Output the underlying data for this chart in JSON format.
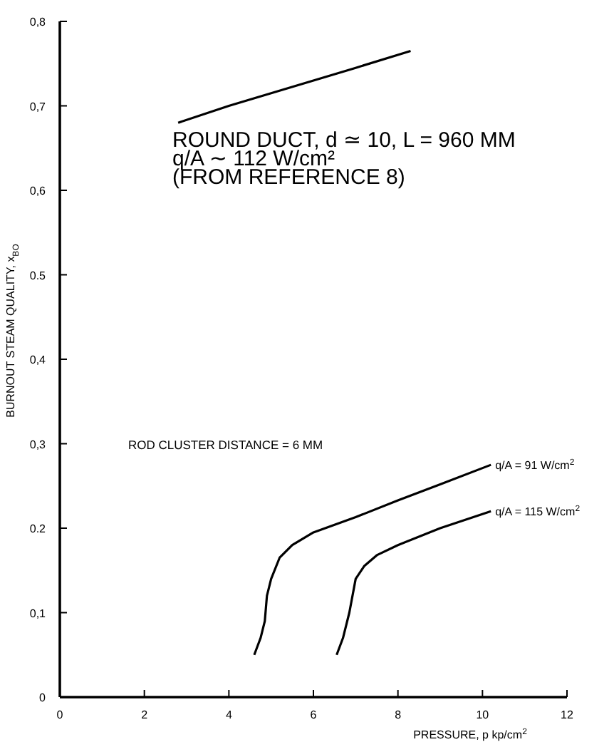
{
  "chart_data": {
    "type": "line",
    "xlabel": "PRESSURE, p kp/cm$^{2}$",
    "ylabel": "BURNOUT STEAM QUALITY, x$_{BO}$",
    "xlim": [
      0,
      12
    ],
    "xticks": [
      0,
      2,
      4,
      6,
      8,
      10,
      12
    ],
    "ylim": [
      0,
      0.8
    ],
    "yticks": [
      {
        "value": 0,
        "label": "0"
      },
      {
        "value": 0.1,
        "label": "0,1"
      },
      {
        "value": 0.2,
        "label": "0.2"
      },
      {
        "value": 0.3,
        "label": "0,3"
      },
      {
        "value": 0.4,
        "label": "0,4"
      },
      {
        "value": 0.5,
        "label": "0.5"
      },
      {
        "value": 0.6,
        "label": "0,6"
      },
      {
        "value": 0.7,
        "label": "0,7"
      },
      {
        "value": 0.8,
        "label": "0,8"
      }
    ],
    "grid": false,
    "marker": "none",
    "line_style": "solid",
    "annotations": [
      "ROUND DUCT, d ≃ 10, L = 960 MM",
      "q/A ∼ 112 W/cm²",
      "(FROM REFERENCE 8)",
      "ROD CLUSTER DISTANCE = 6 MM"
    ],
    "series": [
      {
        "color": "#000000",
        "x": [
          2.8,
          4,
          5,
          6,
          7,
          8.3
        ],
        "values": [
          0.68,
          0.7,
          0.715,
          0.73,
          0.745,
          0.765
        ]
      },
      {
        "name": "q/A = 91 W/cm$^{2}$",
        "color": "#000000",
        "x": [
          4.6,
          4.75,
          4.85,
          4.9,
          5.0,
          5.2,
          5.5,
          6,
          7,
          8,
          9,
          10.2
        ],
        "values": [
          0.05,
          0.07,
          0.09,
          0.12,
          0.14,
          0.165,
          0.18,
          0.195,
          0.213,
          0.233,
          0.252,
          0.275
        ]
      },
      {
        "name": "q/A = 115 W/cm$^{2}$",
        "color": "#000000",
        "x": [
          6.55,
          6.7,
          6.85,
          7.0,
          7.2,
          7.5,
          8,
          9,
          10.2
        ],
        "values": [
          0.05,
          0.07,
          0.1,
          0.14,
          0.155,
          0.168,
          0.18,
          0.2,
          0.22
        ]
      }
    ]
  }
}
